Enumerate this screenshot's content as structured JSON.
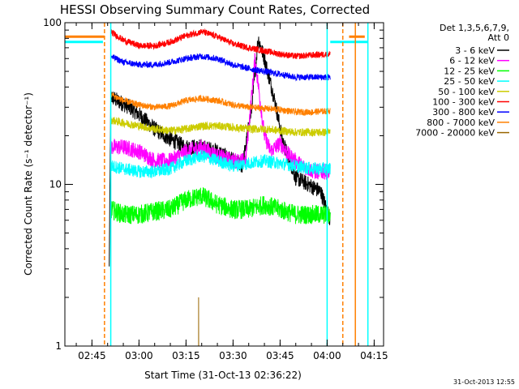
{
  "chart_data": {
    "type": "line",
    "title": "HESSI Observing Summary Count Rates, Corrected",
    "ylabel": "Corrected Count Rate (s⁻¹ detector⁻¹)",
    "xlabel": "Start Time (31-Oct-13 02:36:22)",
    "y_scale": "log",
    "ylim": [
      1,
      100
    ],
    "xlim": [
      "02:36:22",
      "04:18:00"
    ],
    "y_ticks": [
      "1",
      "10",
      "100"
    ],
    "x_ticks": [
      "02:45",
      "03:00",
      "03:15",
      "03:30",
      "03:45",
      "04:00",
      "04:15"
    ],
    "legend": {
      "position": "right",
      "header": [
        "Det 1,3,5,6,7,9,",
        "Att 0"
      ],
      "entries": [
        {
          "label": "3 - 6 keV",
          "color": "#000000"
        },
        {
          "label": "6 - 12 keV",
          "color": "#ff00ff"
        },
        {
          "label": "12 - 25 keV",
          "color": "#00ff00"
        },
        {
          "label": "25 - 50 keV",
          "color": "#00ffff"
        },
        {
          "label": "50 - 100 keV",
          "color": "#cccc00"
        },
        {
          "label": "100 - 300 keV",
          "color": "#ff0000"
        },
        {
          "label": "300 - 800 keV",
          "color": "#0000ff"
        },
        {
          "label": "800 - 7000 keV",
          "color": "#ff8000"
        },
        {
          "label": "7000 - 20000 keV",
          "color": "#996600"
        }
      ]
    },
    "series": [
      {
        "name": "3 - 6 keV",
        "color": "#000000",
        "noise": 0.05,
        "x": [
          "02:50:30",
          "02:51:00",
          "02:53:00",
          "02:57:00",
          "03:01:00",
          "03:05:00",
          "03:10:00",
          "03:15:00",
          "03:20:00",
          "03:25:00",
          "03:30:00",
          "03:33:00",
          "03:36:00",
          "03:38:00",
          "03:40:00",
          "03:43:00",
          "03:46:00",
          "03:50:00",
          "03:54:00",
          "03:58:00",
          "04:01:00"
        ],
        "y": [
          3.0,
          35,
          33,
          30,
          26,
          22,
          19,
          17,
          17,
          16,
          14,
          13,
          30,
          80,
          60,
          35,
          18,
          11,
          10,
          9,
          6
        ]
      },
      {
        "name": "6 - 12 keV",
        "color": "#ff00ff",
        "noise": 0.05,
        "x": [
          "02:51:00",
          "02:55:00",
          "03:00:00",
          "03:05:00",
          "03:10:00",
          "03:15:00",
          "03:20:00",
          "03:25:00",
          "03:30:00",
          "03:34:00",
          "03:37:00",
          "03:40:00",
          "03:42:00",
          "03:45:00",
          "03:48:00",
          "03:52:00",
          "03:56:00",
          "04:01:00"
        ],
        "y": [
          17,
          17,
          16,
          14,
          14,
          16,
          17,
          15,
          14,
          14,
          60,
          20,
          16,
          18,
          15,
          13,
          12,
          12
        ]
      },
      {
        "name": "12 - 25 keV",
        "color": "#00ff00",
        "noise": 0.06,
        "x": [
          "02:51:00",
          "02:55:00",
          "03:00:00",
          "03:05:00",
          "03:10:00",
          "03:15:00",
          "03:20:00",
          "03:25:00",
          "03:30:00",
          "03:35:00",
          "03:40:00",
          "03:45:00",
          "03:50:00",
          "03:55:00",
          "04:01:00"
        ],
        "y": [
          7,
          6.5,
          6.5,
          6.8,
          7,
          8,
          8.5,
          7.5,
          7,
          7,
          7.5,
          7,
          6.5,
          6.5,
          6.5
        ]
      },
      {
        "name": "25 - 50 keV",
        "color": "#00ffff",
        "noise": 0.04,
        "x": [
          "02:51:00",
          "02:55:00",
          "03:00:00",
          "03:05:00",
          "03:10:00",
          "03:15:00",
          "03:20:00",
          "03:25:00",
          "03:30:00",
          "03:35:00",
          "03:40:00",
          "03:45:00",
          "03:50:00",
          "03:55:00",
          "04:01:00"
        ],
        "y": [
          13,
          12.5,
          12,
          12,
          12.5,
          14,
          15,
          14,
          13,
          13.5,
          14,
          13.5,
          13,
          12.5,
          12.5
        ]
      },
      {
        "name": "50 - 100 keV",
        "color": "#cccc00",
        "noise": 0.025,
        "x": [
          "02:51:00",
          "02:55:00",
          "03:00:00",
          "03:05:00",
          "03:10:00",
          "03:15:00",
          "03:20:00",
          "03:25:00",
          "03:30:00",
          "03:35:00",
          "03:40:00",
          "03:45:00",
          "03:50:00",
          "03:55:00",
          "04:01:00"
        ],
        "y": [
          25,
          24,
          23,
          22,
          21.5,
          22,
          23,
          23,
          22.5,
          22,
          22,
          21.5,
          21,
          21,
          21
        ]
      },
      {
        "name": "100 - 300 keV",
        "color": "#ff0000",
        "noise": 0.02,
        "x": [
          "02:51:00",
          "02:55:00",
          "03:00:00",
          "03:05:00",
          "03:10:00",
          "03:15:00",
          "03:20:00",
          "03:25:00",
          "03:30:00",
          "03:35:00",
          "03:40:00",
          "03:45:00",
          "03:50:00",
          "03:55:00",
          "04:01:00"
        ],
        "y": [
          88,
          78,
          72,
          72,
          76,
          83,
          88,
          82,
          74,
          70,
          67,
          64,
          62,
          63,
          64
        ]
      },
      {
        "name": "300 - 800 keV",
        "color": "#0000ff",
        "noise": 0.02,
        "x": [
          "02:51:00",
          "02:55:00",
          "03:00:00",
          "03:05:00",
          "03:10:00",
          "03:15:00",
          "03:20:00",
          "03:25:00",
          "03:30:00",
          "03:35:00",
          "03:40:00",
          "03:45:00",
          "03:50:00",
          "03:55:00",
          "04:01:00"
        ],
        "y": [
          62,
          57,
          55,
          55,
          57,
          60,
          62,
          60,
          55,
          52,
          50,
          48,
          46,
          46,
          46
        ]
      },
      {
        "name": "800 - 7000 keV",
        "color": "#ff8000",
        "noise": 0.02,
        "x": [
          "02:51:00",
          "02:55:00",
          "03:00:00",
          "03:05:00",
          "03:10:00",
          "03:15:00",
          "03:20:00",
          "03:25:00",
          "03:30:00",
          "03:35:00",
          "03:40:00",
          "03:45:00",
          "03:50:00",
          "03:55:00",
          "04:01:00"
        ],
        "y": [
          36,
          33,
          31,
          30,
          30.5,
          33,
          34,
          33,
          31,
          30,
          29.5,
          29,
          28,
          28,
          28.5
        ]
      },
      {
        "name": "7000 - 20000 keV",
        "color": "#996600",
        "noise": 0,
        "x": [
          "03:19:00",
          "03:19:01",
          "03:19:02"
        ],
        "y": [
          1,
          2,
          1
        ]
      }
    ],
    "saa_flat_levels": [
      {
        "color": "#ff8000",
        "y": 82,
        "x_ranges": [
          [
            "02:36:22",
            "02:49:00"
          ],
          [
            "04:07:00",
            "04:12:00"
          ]
        ]
      },
      {
        "color": "#00ffff",
        "y": 76,
        "x_ranges": [
          [
            "02:36:22",
            "02:48:30"
          ],
          [
            "04:01:00",
            "04:13:00"
          ]
        ]
      }
    ],
    "vertical_markers": [
      {
        "color": "#00ffff",
        "style": "solid",
        "x": "02:51:00"
      },
      {
        "color": "#00ffff",
        "style": "solid",
        "x": "04:00:00"
      },
      {
        "color": "#00ffff",
        "style": "solid",
        "x": "04:13:00"
      },
      {
        "color": "#ff8000",
        "style": "dashed",
        "x": "02:49:00"
      },
      {
        "color": "#ff8000",
        "style": "dashed",
        "x": "04:05:00"
      },
      {
        "color": "#ff8000",
        "style": "solid",
        "x": "04:09:00"
      }
    ],
    "timestamp": "31-Oct-2013 12:55"
  }
}
